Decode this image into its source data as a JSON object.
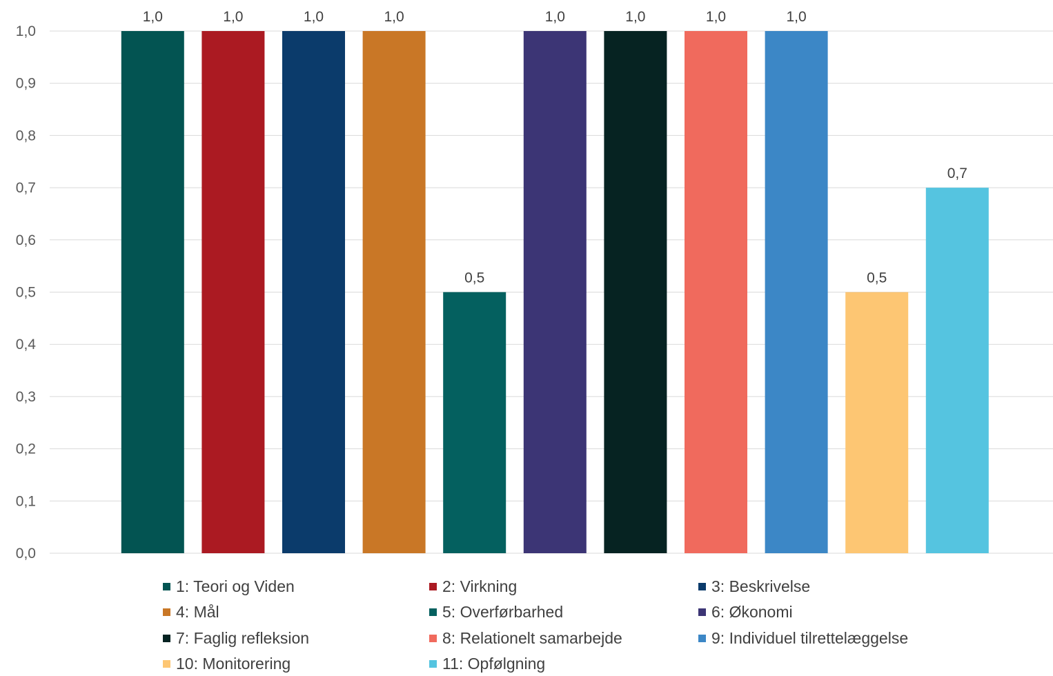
{
  "chart_data": {
    "type": "bar",
    "title": "",
    "xlabel": "",
    "ylabel": "",
    "ylim": [
      0,
      1.0
    ],
    "yticks": [
      "0,0",
      "0,1",
      "0,2",
      "0,3",
      "0,4",
      "0,5",
      "0,6",
      "0,7",
      "0,8",
      "0,9",
      "1,0"
    ],
    "grid": true,
    "legend_position": "bottom",
    "categories": [
      "1: Teori og Viden",
      "2: Virkning",
      "3: Beskrivelse",
      "4: Mål",
      "5: Overførbarhed",
      "6: Økonomi",
      "7: Faglig refleksion",
      "8: Relationelt samarbejde",
      "9: Individuel tilrettelæggelse",
      "10: Monitorering",
      "11: Opfølgning"
    ],
    "values": [
      1.0,
      1.0,
      1.0,
      1.0,
      0.5,
      1.0,
      1.0,
      1.0,
      1.0,
      0.5,
      0.7
    ],
    "value_labels": [
      "1,0",
      "1,0",
      "1,0",
      "1,0",
      "0,5",
      "1,0",
      "1,0",
      "1,0",
      "1,0",
      "0,5",
      "0,7"
    ],
    "colors": [
      "#035452",
      "#ab1a22",
      "#0b3b6b",
      "#c97726",
      "#04605f",
      "#3c3575",
      "#062322",
      "#f06a5d",
      "#3c87c6",
      "#fdc673",
      "#55c4e0"
    ]
  }
}
